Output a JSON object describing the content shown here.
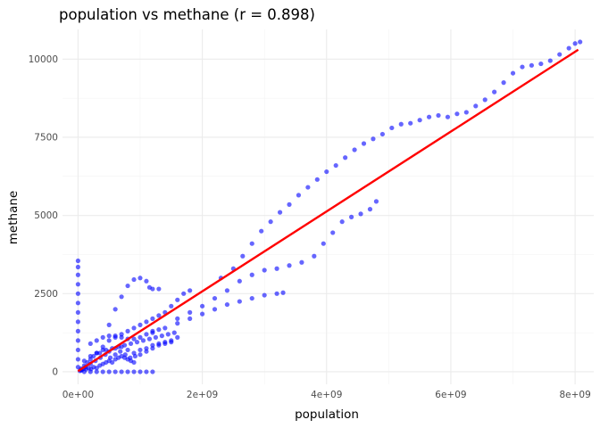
{
  "chart_data": {
    "type": "scatter",
    "title": "population vs methane (r = 0.898)",
    "xlabel": "population",
    "ylabel": "methane",
    "xlim": [
      -250000000,
      8300000000
    ],
    "ylim": [
      -400,
      10950
    ],
    "x_ticks": [
      0,
      2000000000,
      4000000000,
      6000000000,
      8000000000
    ],
    "x_tick_labels": [
      "0e+00",
      "2e+09",
      "4e+09",
      "6e+09",
      "8e+09"
    ],
    "y_ticks": [
      0,
      2500,
      5000,
      7500,
      10000
    ],
    "y_tick_labels": [
      "0",
      "2500",
      "5000",
      "7500",
      "10000"
    ],
    "grid": "on",
    "legend": "none",
    "point_color": "#0000ff",
    "trend_color": "#ff0000",
    "trend_line": {
      "x": [
        0,
        8050000000
      ],
      "y": [
        20,
        10300
      ]
    },
    "series": [
      {
        "points": [
          [
            2300000000,
            3000
          ],
          [
            2500000000,
            3300
          ],
          [
            2650000000,
            3700
          ],
          [
            2800000000,
            4100
          ],
          [
            2950000000,
            4500
          ],
          [
            3100000000,
            4800
          ],
          [
            3250000000,
            5100
          ],
          [
            3400000000,
            5350
          ],
          [
            3550000000,
            5650
          ],
          [
            3700000000,
            5900
          ],
          [
            3850000000,
            6150
          ],
          [
            4000000000,
            6400
          ],
          [
            4150000000,
            6600
          ],
          [
            4300000000,
            6850
          ],
          [
            4450000000,
            7100
          ],
          [
            4600000000,
            7300
          ],
          [
            4750000000,
            7450
          ],
          [
            4900000000,
            7600
          ],
          [
            5050000000,
            7800
          ],
          [
            5200000000,
            7920
          ],
          [
            5350000000,
            7950
          ],
          [
            5500000000,
            8050
          ],
          [
            5650000000,
            8150
          ],
          [
            5800000000,
            8200
          ],
          [
            5950000000,
            8150
          ],
          [
            6100000000,
            8250
          ],
          [
            6250000000,
            8300
          ],
          [
            6400000000,
            8500
          ],
          [
            6550000000,
            8700
          ],
          [
            6700000000,
            8950
          ],
          [
            6850000000,
            9250
          ],
          [
            7000000000,
            9550
          ],
          [
            7150000000,
            9750
          ],
          [
            7300000000,
            9800
          ],
          [
            7450000000,
            9850
          ],
          [
            7600000000,
            9950
          ],
          [
            7750000000,
            10150
          ],
          [
            7900000000,
            10350
          ],
          [
            8000000000,
            10500
          ],
          [
            8080000000,
            10550
          ]
        ]
      },
      {
        "points": [
          [
            1600000000,
            1700
          ],
          [
            1800000000,
            1900
          ],
          [
            2000000000,
            2100
          ],
          [
            2200000000,
            2350
          ],
          [
            2400000000,
            2600
          ],
          [
            2600000000,
            2900
          ],
          [
            2800000000,
            3100
          ],
          [
            3000000000,
            3250
          ],
          [
            3200000000,
            3300
          ],
          [
            3400000000,
            3400
          ],
          [
            3600000000,
            3500
          ],
          [
            3800000000,
            3700
          ],
          [
            3950000000,
            4100
          ],
          [
            4100000000,
            4450
          ],
          [
            4250000000,
            4800
          ],
          [
            4400000000,
            4950
          ],
          [
            4550000000,
            5050
          ],
          [
            4700000000,
            5200
          ],
          [
            4800000000,
            5450
          ]
        ]
      },
      {
        "points": [
          [
            1200000000,
            1250
          ],
          [
            1400000000,
            1400
          ],
          [
            1600000000,
            1550
          ],
          [
            1800000000,
            1700
          ],
          [
            2000000000,
            1850
          ],
          [
            2200000000,
            2000
          ],
          [
            2400000000,
            2150
          ],
          [
            2600000000,
            2250
          ],
          [
            2800000000,
            2350
          ],
          [
            3000000000,
            2450
          ],
          [
            3200000000,
            2500
          ],
          [
            3300000000,
            2530
          ]
        ]
      },
      {
        "points": [
          [
            0,
            2800
          ],
          [
            0,
            3100
          ],
          [
            0,
            3350
          ],
          [
            0,
            3550
          ],
          [
            0,
            2500
          ],
          [
            0,
            2200
          ],
          [
            0,
            1900
          ],
          [
            0,
            1600
          ],
          [
            0,
            1300
          ],
          [
            0,
            1000
          ],
          [
            0,
            700
          ],
          [
            0,
            400
          ],
          [
            0,
            150
          ]
        ]
      },
      {
        "points": [
          [
            500000000,
            1500
          ],
          [
            600000000,
            2000
          ],
          [
            700000000,
            2400
          ],
          [
            800000000,
            2750
          ],
          [
            900000000,
            2950
          ],
          [
            1000000000,
            3000
          ],
          [
            1100000000,
            2900
          ],
          [
            1150000000,
            2700
          ],
          [
            1200000000,
            2650
          ],
          [
            1300000000,
            2650
          ]
        ]
      },
      {
        "points": [
          [
            100000000,
            0
          ],
          [
            200000000,
            0
          ],
          [
            300000000,
            0
          ],
          [
            400000000,
            0
          ],
          [
            500000000,
            0
          ],
          [
            600000000,
            0
          ],
          [
            700000000,
            0
          ],
          [
            800000000,
            0
          ],
          [
            900000000,
            0
          ],
          [
            1000000000,
            0
          ],
          [
            1100000000,
            0
          ],
          [
            1200000000,
            0
          ]
        ]
      },
      {
        "points": [
          [
            100000000,
            200
          ],
          [
            200000000,
            400
          ],
          [
            300000000,
            600
          ],
          [
            400000000,
            800
          ],
          [
            500000000,
            1000
          ],
          [
            600000000,
            1100
          ],
          [
            700000000,
            1200
          ],
          [
            800000000,
            1300
          ],
          [
            900000000,
            1400
          ],
          [
            1000000000,
            1500
          ],
          [
            1100000000,
            1600
          ],
          [
            1200000000,
            1700
          ],
          [
            1300000000,
            1800
          ],
          [
            1400000000,
            1900
          ],
          [
            1500000000,
            2100
          ],
          [
            1600000000,
            2300
          ],
          [
            1700000000,
            2500
          ],
          [
            1800000000,
            2600
          ]
        ]
      },
      {
        "points": [
          [
            200000000,
            900
          ],
          [
            300000000,
            1000
          ],
          [
            400000000,
            1100
          ],
          [
            500000000,
            1150
          ],
          [
            600000000,
            1150
          ],
          [
            700000000,
            1100
          ],
          [
            800000000,
            1050
          ],
          [
            900000000,
            1050
          ],
          [
            1000000000,
            1100
          ],
          [
            1100000000,
            1200
          ],
          [
            1200000000,
            1300
          ],
          [
            1300000000,
            1350
          ]
        ]
      },
      {
        "points": [
          [
            50000000,
            100
          ],
          [
            150000000,
            300
          ],
          [
            250000000,
            500
          ],
          [
            350000000,
            600
          ],
          [
            450000000,
            700
          ],
          [
            550000000,
            750
          ],
          [
            650000000,
            800
          ],
          [
            750000000,
            850
          ],
          [
            850000000,
            900
          ],
          [
            950000000,
            950
          ],
          [
            1050000000,
            1000
          ],
          [
            1150000000,
            1050
          ],
          [
            1250000000,
            1100
          ],
          [
            1350000000,
            1150
          ],
          [
            1450000000,
            1200
          ],
          [
            1550000000,
            1250
          ]
        ]
      },
      {
        "points": [
          [
            100000000,
            350
          ],
          [
            200000000,
            500
          ],
          [
            300000000,
            600
          ],
          [
            400000000,
            700
          ],
          [
            500000000,
            650
          ],
          [
            600000000,
            750
          ],
          [
            700000000,
            800
          ],
          [
            800000000,
            700
          ],
          [
            900000000,
            600
          ],
          [
            1000000000,
            700
          ],
          [
            1100000000,
            750
          ],
          [
            1200000000,
            850
          ],
          [
            1300000000,
            900
          ],
          [
            1400000000,
            950
          ],
          [
            1500000000,
            1000
          ],
          [
            1600000000,
            1100
          ]
        ]
      },
      {
        "points": [
          [
            50000000,
            50
          ],
          [
            120000000,
            150
          ],
          [
            200000000,
            250
          ],
          [
            280000000,
            350
          ],
          [
            360000000,
            450
          ],
          [
            440000000,
            550
          ],
          [
            520000000,
            450
          ],
          [
            600000000,
            550
          ],
          [
            680000000,
            650
          ],
          [
            760000000,
            550
          ],
          [
            840000000,
            450
          ],
          [
            920000000,
            500
          ],
          [
            1000000000,
            550
          ],
          [
            1100000000,
            650
          ],
          [
            1200000000,
            750
          ],
          [
            1300000000,
            850
          ],
          [
            1400000000,
            900
          ],
          [
            1500000000,
            950
          ]
        ]
      },
      {
        "points": [
          [
            30000000,
            30
          ],
          [
            60000000,
            60
          ],
          [
            90000000,
            100
          ],
          [
            130000000,
            80
          ],
          [
            170000000,
            120
          ],
          [
            210000000,
            90
          ],
          [
            250000000,
            150
          ],
          [
            300000000,
            120
          ],
          [
            350000000,
            200
          ],
          [
            400000000,
            250
          ],
          [
            450000000,
            300
          ],
          [
            500000000,
            350
          ],
          [
            550000000,
            300
          ],
          [
            600000000,
            400
          ],
          [
            650000000,
            450
          ],
          [
            700000000,
            500
          ],
          [
            750000000,
            450
          ],
          [
            800000000,
            400
          ],
          [
            850000000,
            350
          ],
          [
            900000000,
            300
          ]
        ]
      }
    ]
  }
}
